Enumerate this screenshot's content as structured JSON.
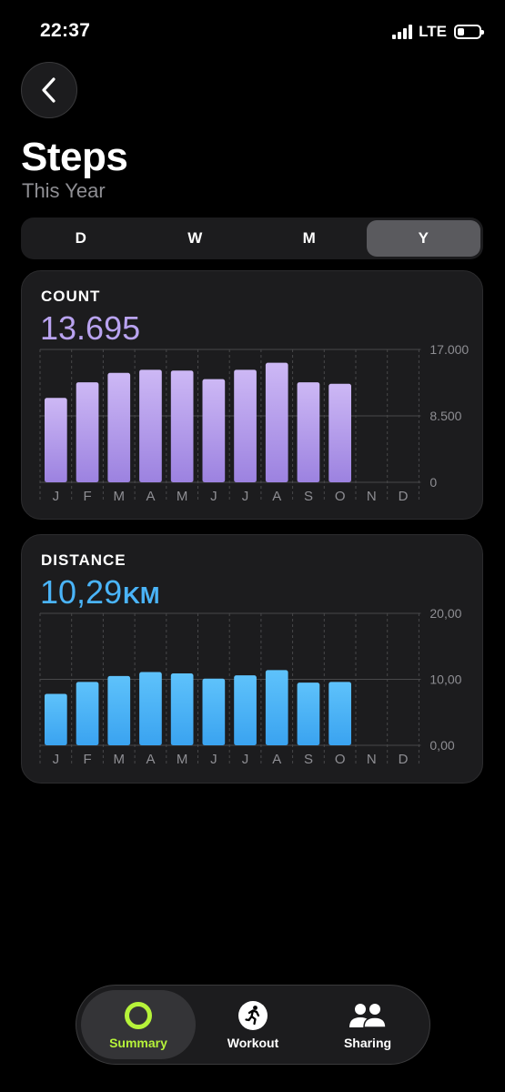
{
  "status_bar": {
    "time": "22:37",
    "network": "LTE",
    "battery_level": 0.32
  },
  "header": {
    "title": "Steps",
    "subtitle": "This Year"
  },
  "range_selector": {
    "options": [
      "D",
      "W",
      "M",
      "Y"
    ],
    "selected": "Y"
  },
  "count_card": {
    "label": "COUNT",
    "value": "13.695"
  },
  "distance_card": {
    "label": "DISTANCE",
    "value": "10,29",
    "unit": "KM"
  },
  "chart_data": [
    {
      "type": "bar",
      "categories": [
        "J",
        "F",
        "M",
        "A",
        "M",
        "J",
        "J",
        "A",
        "S",
        "O",
        "N",
        "D"
      ],
      "values": [
        10800,
        12800,
        14000,
        14400,
        14300,
        13200,
        14400,
        15300,
        12800,
        12600,
        null,
        null
      ],
      "ylim": [
        0,
        17000
      ],
      "y_ticks": [
        "17.000",
        "8.500",
        "0"
      ],
      "y_tick_values": [
        17000,
        8500,
        0
      ],
      "color": "#a68ee8"
    },
    {
      "type": "bar",
      "categories": [
        "J",
        "F",
        "M",
        "A",
        "M",
        "J",
        "J",
        "A",
        "S",
        "O",
        "N",
        "D"
      ],
      "values": [
        7.8,
        9.6,
        10.5,
        11.1,
        10.9,
        10.1,
        10.6,
        11.4,
        9.5,
        9.6,
        null,
        null
      ],
      "ylim": [
        0,
        20
      ],
      "y_ticks": [
        "20,00",
        "10,00",
        "0,00"
      ],
      "y_tick_values": [
        20,
        10,
        0
      ],
      "color": "#4ab4f8"
    }
  ],
  "tab_bar": {
    "items": [
      {
        "label": "Summary",
        "icon": "activity-ring-icon",
        "active": true
      },
      {
        "label": "Workout",
        "icon": "running-figure-icon",
        "active": false
      },
      {
        "label": "Sharing",
        "icon": "people-icon",
        "active": false
      }
    ]
  }
}
